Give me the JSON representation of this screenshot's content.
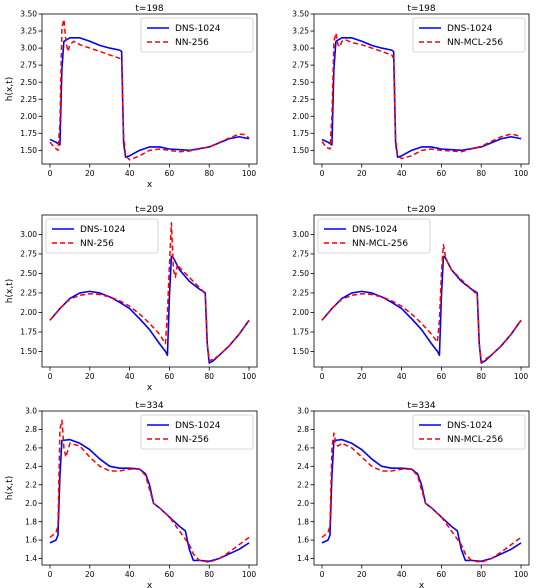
{
  "colors": {
    "dns": "#0000ff",
    "nn": "#ff0000"
  },
  "chart_data": [
    {
      "type": "line",
      "title": "t=198",
      "xlabel": "x",
      "ylabel": "h(x,t)",
      "xlim": [
        -4,
        104
      ],
      "ylim": [
        1.3,
        3.5
      ],
      "xticks": [
        "0",
        "20",
        "40",
        "60",
        "80",
        "100"
      ],
      "yticks": [
        "1.50",
        "1.75",
        "2.00",
        "2.25",
        "2.50",
        "2.75",
        "3.00",
        "3.25",
        "3.50"
      ],
      "legend": "upper right",
      "series": [
        {
          "name": "DNS-1024",
          "style": "solid",
          "x": [
            0,
            3,
            5,
            6,
            7,
            10,
            15,
            20,
            25,
            30,
            35,
            36,
            37,
            38,
            40,
            45,
            50,
            55,
            60,
            70,
            80,
            90,
            95,
            100
          ],
          "y": [
            1.66,
            1.62,
            1.58,
            2.7,
            3.1,
            3.15,
            3.15,
            3.1,
            3.04,
            3.0,
            2.97,
            2.95,
            1.6,
            1.4,
            1.42,
            1.5,
            1.55,
            1.55,
            1.52,
            1.5,
            1.55,
            1.67,
            1.7,
            1.67
          ]
        },
        {
          "name": "NN-256",
          "style": "dashed",
          "x": [
            0,
            2,
            4,
            5,
            6,
            7,
            8,
            9,
            10,
            12,
            15,
            20,
            25,
            30,
            35,
            36,
            37,
            38,
            40,
            45,
            50,
            55,
            60,
            65,
            70,
            80,
            90,
            95,
            98,
            100
          ],
          "y": [
            1.62,
            1.55,
            1.5,
            1.9,
            3.3,
            3.42,
            3.1,
            2.95,
            3.05,
            3.1,
            3.05,
            3.0,
            2.95,
            2.9,
            2.85,
            2.8,
            1.7,
            1.42,
            1.36,
            1.42,
            1.5,
            1.52,
            1.5,
            1.48,
            1.49,
            1.55,
            1.68,
            1.74,
            1.73,
            1.68
          ]
        }
      ]
    },
    {
      "type": "line",
      "title": "t=198",
      "xlabel": "",
      "ylabel": "",
      "xlim": [
        -4,
        104
      ],
      "ylim": [
        1.3,
        3.5
      ],
      "xticks": [
        "0",
        "20",
        "40",
        "60",
        "80",
        "100"
      ],
      "yticks": [
        "1.50",
        "1.75",
        "2.00",
        "2.25",
        "2.50",
        "2.75",
        "3.00",
        "3.25",
        "3.50"
      ],
      "legend": "upper right",
      "series": [
        {
          "name": "DNS-1024",
          "style": "solid",
          "x": [
            0,
            3,
            5,
            6,
            7,
            10,
            15,
            20,
            25,
            30,
            35,
            36,
            37,
            38,
            40,
            45,
            50,
            55,
            60,
            70,
            80,
            90,
            95,
            100
          ],
          "y": [
            1.66,
            1.62,
            1.58,
            2.7,
            3.1,
            3.15,
            3.15,
            3.1,
            3.04,
            3.0,
            2.97,
            2.95,
            1.6,
            1.4,
            1.42,
            1.5,
            1.55,
            1.55,
            1.52,
            1.5,
            1.55,
            1.67,
            1.7,
            1.67
          ]
        },
        {
          "name": "NN-MCL-256",
          "style": "dashed",
          "x": [
            0,
            2,
            4,
            5,
            6,
            7,
            8,
            9,
            10,
            12,
            15,
            20,
            25,
            30,
            35,
            36,
            37,
            38,
            40,
            45,
            50,
            55,
            60,
            70,
            80,
            90,
            95,
            98,
            100
          ],
          "y": [
            1.63,
            1.55,
            1.52,
            2.0,
            3.1,
            3.22,
            3.05,
            3.02,
            3.1,
            3.12,
            3.08,
            3.05,
            3.0,
            2.95,
            2.9,
            2.85,
            1.65,
            1.42,
            1.38,
            1.42,
            1.5,
            1.52,
            1.5,
            1.48,
            1.56,
            1.7,
            1.74,
            1.72,
            1.68
          ]
        }
      ]
    },
    {
      "type": "line",
      "title": "t=209",
      "xlabel": "x",
      "ylabel": "h(x,t)",
      "xlim": [
        -4,
        104
      ],
      "ylim": [
        1.3,
        3.25
      ],
      "xticks": [
        "0",
        "20",
        "40",
        "60",
        "80",
        "100"
      ],
      "yticks": [
        "1.50",
        "1.75",
        "2.00",
        "2.25",
        "2.50",
        "2.75",
        "3.00"
      ],
      "legend": "upper left",
      "series": [
        {
          "name": "DNS-1024",
          "style": "solid",
          "x": [
            0,
            5,
            10,
            15,
            20,
            25,
            30,
            35,
            40,
            45,
            50,
            55,
            58,
            59,
            60,
            61,
            62,
            65,
            70,
            75,
            77,
            78,
            79,
            80,
            82,
            85,
            90,
            95,
            100
          ],
          "y": [
            1.9,
            2.05,
            2.18,
            2.25,
            2.27,
            2.25,
            2.2,
            2.13,
            2.05,
            1.92,
            1.78,
            1.6,
            1.5,
            1.45,
            2.2,
            2.72,
            2.7,
            2.55,
            2.4,
            2.3,
            2.27,
            2.25,
            1.6,
            1.35,
            1.38,
            1.45,
            1.57,
            1.72,
            1.9
          ]
        },
        {
          "name": "NN-256",
          "style": "dashed",
          "x": [
            0,
            5,
            10,
            15,
            20,
            25,
            30,
            35,
            40,
            45,
            50,
            55,
            58,
            59,
            60,
            61,
            62,
            63,
            64,
            65,
            70,
            75,
            77,
            78,
            79,
            80,
            82,
            85,
            90,
            95,
            100
          ],
          "y": [
            1.9,
            2.05,
            2.17,
            2.22,
            2.24,
            2.23,
            2.2,
            2.15,
            2.08,
            1.98,
            1.86,
            1.72,
            1.6,
            2.0,
            2.6,
            3.15,
            2.55,
            2.45,
            2.62,
            2.58,
            2.45,
            2.32,
            2.27,
            2.22,
            1.6,
            1.38,
            1.4,
            1.45,
            1.57,
            1.72,
            1.9
          ]
        }
      ]
    },
    {
      "type": "line",
      "title": "t=209",
      "xlabel": "",
      "ylabel": "",
      "xlim": [
        -4,
        104
      ],
      "ylim": [
        1.3,
        3.25
      ],
      "xticks": [
        "0",
        "20",
        "40",
        "60",
        "80",
        "100"
      ],
      "yticks": [
        "1.50",
        "1.75",
        "2.00",
        "2.25",
        "2.50",
        "2.75",
        "3.00"
      ],
      "legend": "upper left",
      "series": [
        {
          "name": "DNS-1024",
          "style": "solid",
          "x": [
            0,
            5,
            10,
            15,
            20,
            25,
            30,
            35,
            40,
            45,
            50,
            55,
            58,
            59,
            60,
            61,
            62,
            65,
            70,
            75,
            77,
            78,
            79,
            80,
            82,
            85,
            90,
            95,
            100
          ],
          "y": [
            1.9,
            2.05,
            2.18,
            2.25,
            2.27,
            2.25,
            2.2,
            2.13,
            2.05,
            1.92,
            1.78,
            1.6,
            1.5,
            1.45,
            2.2,
            2.72,
            2.7,
            2.55,
            2.4,
            2.3,
            2.27,
            2.25,
            1.6,
            1.35,
            1.38,
            1.45,
            1.57,
            1.72,
            1.9
          ]
        },
        {
          "name": "NN-MCL-256",
          "style": "dashed",
          "x": [
            0,
            5,
            10,
            15,
            20,
            25,
            30,
            35,
            40,
            45,
            50,
            55,
            58,
            59,
            60,
            61,
            62,
            63,
            65,
            70,
            75,
            77,
            78,
            79,
            80,
            82,
            85,
            90,
            95,
            100
          ],
          "y": [
            1.9,
            2.05,
            2.17,
            2.22,
            2.24,
            2.23,
            2.2,
            2.15,
            2.08,
            1.98,
            1.86,
            1.72,
            1.62,
            1.9,
            2.5,
            2.87,
            2.72,
            2.65,
            2.55,
            2.42,
            2.3,
            2.25,
            2.2,
            1.6,
            1.36,
            1.4,
            1.45,
            1.57,
            1.72,
            1.9
          ]
        }
      ]
    },
    {
      "type": "line",
      "title": "t=334",
      "xlabel": "x",
      "ylabel": "h(x,t)",
      "xlim": [
        -4,
        104
      ],
      "ylim": [
        1.33,
        3.0
      ],
      "xticks": [
        "0",
        "20",
        "40",
        "60",
        "80",
        "100"
      ],
      "yticks": [
        "1.4",
        "1.6",
        "1.8",
        "2.0",
        "2.2",
        "2.4",
        "2.6",
        "2.8",
        "3.0"
      ],
      "legend": "upper right",
      "series": [
        {
          "name": "DNS-1024",
          "style": "solid",
          "x": [
            0,
            3,
            4,
            5,
            6,
            10,
            15,
            20,
            25,
            30,
            35,
            40,
            45,
            48,
            50,
            52,
            55,
            60,
            65,
            68,
            70,
            72,
            75,
            80,
            85,
            90,
            95,
            100
          ],
          "y": [
            1.57,
            1.6,
            1.65,
            2.3,
            2.68,
            2.69,
            2.65,
            2.58,
            2.48,
            2.4,
            2.38,
            2.38,
            2.37,
            2.32,
            2.2,
            2.0,
            1.95,
            1.85,
            1.75,
            1.7,
            1.5,
            1.38,
            1.38,
            1.37,
            1.4,
            1.45,
            1.5,
            1.57
          ]
        },
        {
          "name": "NN-256",
          "style": "dashed",
          "x": [
            0,
            3,
            4,
            5,
            6,
            7,
            8,
            10,
            15,
            20,
            25,
            30,
            35,
            40,
            45,
            48,
            50,
            52,
            55,
            60,
            65,
            70,
            72,
            75,
            80,
            85,
            90,
            95,
            100
          ],
          "y": [
            1.63,
            1.68,
            1.75,
            2.8,
            2.9,
            2.6,
            2.5,
            2.65,
            2.62,
            2.5,
            2.4,
            2.35,
            2.35,
            2.37,
            2.37,
            2.3,
            2.15,
            2.0,
            1.95,
            1.85,
            1.7,
            1.55,
            1.45,
            1.38,
            1.36,
            1.4,
            1.47,
            1.55,
            1.63
          ]
        }
      ]
    },
    {
      "type": "line",
      "title": "t=334",
      "xlabel": "x",
      "ylabel": "",
      "xlim": [
        -4,
        104
      ],
      "ylim": [
        1.33,
        3.0
      ],
      "xticks": [
        "0",
        "20",
        "40",
        "60",
        "80",
        "100"
      ],
      "yticks": [
        "1.4",
        "1.6",
        "1.8",
        "2.0",
        "2.2",
        "2.4",
        "2.6",
        "2.8",
        "3.0"
      ],
      "legend": "upper right",
      "series": [
        {
          "name": "DNS-1024",
          "style": "solid",
          "x": [
            0,
            3,
            4,
            5,
            6,
            10,
            15,
            20,
            25,
            30,
            35,
            40,
            45,
            48,
            50,
            52,
            55,
            60,
            65,
            68,
            70,
            72,
            75,
            80,
            85,
            90,
            95,
            100
          ],
          "y": [
            1.57,
            1.6,
            1.65,
            2.3,
            2.68,
            2.69,
            2.65,
            2.58,
            2.48,
            2.4,
            2.38,
            2.38,
            2.37,
            2.32,
            2.2,
            2.0,
            1.95,
            1.85,
            1.75,
            1.7,
            1.5,
            1.38,
            1.38,
            1.37,
            1.4,
            1.45,
            1.5,
            1.57
          ]
        },
        {
          "name": "NN-MCL-256",
          "style": "dashed",
          "x": [
            0,
            3,
            4,
            5,
            6,
            7,
            8,
            10,
            15,
            20,
            25,
            30,
            35,
            40,
            45,
            48,
            50,
            52,
            55,
            60,
            65,
            70,
            72,
            75,
            80,
            85,
            90,
            95,
            100
          ],
          "y": [
            1.63,
            1.68,
            1.75,
            2.6,
            2.76,
            2.65,
            2.62,
            2.65,
            2.6,
            2.5,
            2.4,
            2.35,
            2.35,
            2.37,
            2.37,
            2.3,
            2.15,
            2.0,
            1.95,
            1.85,
            1.7,
            1.55,
            1.45,
            1.38,
            1.36,
            1.4,
            1.47,
            1.55,
            1.63
          ]
        }
      ]
    }
  ]
}
